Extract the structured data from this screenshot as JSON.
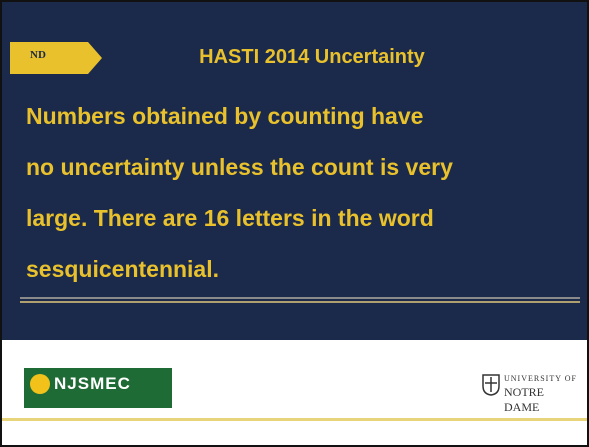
{
  "header": {
    "logo": "ND",
    "title": "HASTI 2014 Uncertainty"
  },
  "body": {
    "lines": [
      "Numbers obtained by counting have",
      "no uncertainty unless the count is very",
      "large.  There are 16 letters in the word",
      "sesquicentennial."
    ]
  },
  "footer": {
    "left_logo": "NJSMEC",
    "right_logo": [
      "UNIVERSITY OF",
      "NOTRE DAME"
    ]
  }
}
